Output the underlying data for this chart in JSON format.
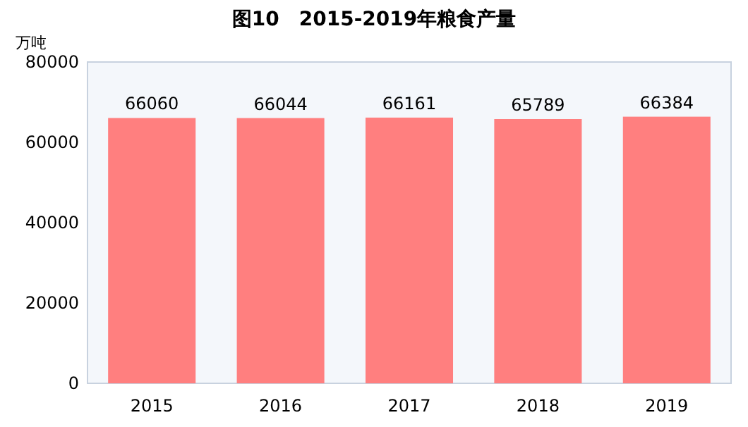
{
  "chart_data": {
    "type": "bar",
    "title": "图10　2015-2019年粮食产量",
    "ylabel": "万吨",
    "categories": [
      "2015",
      "2016",
      "2017",
      "2018",
      "2019"
    ],
    "values": [
      66060,
      66044,
      66161,
      65789,
      66384
    ],
    "color": "#ff7f7f",
    "ylim": [
      0,
      80000
    ],
    "yticks": [
      0,
      20000,
      40000,
      60000,
      80000
    ],
    "data_labels": true
  }
}
